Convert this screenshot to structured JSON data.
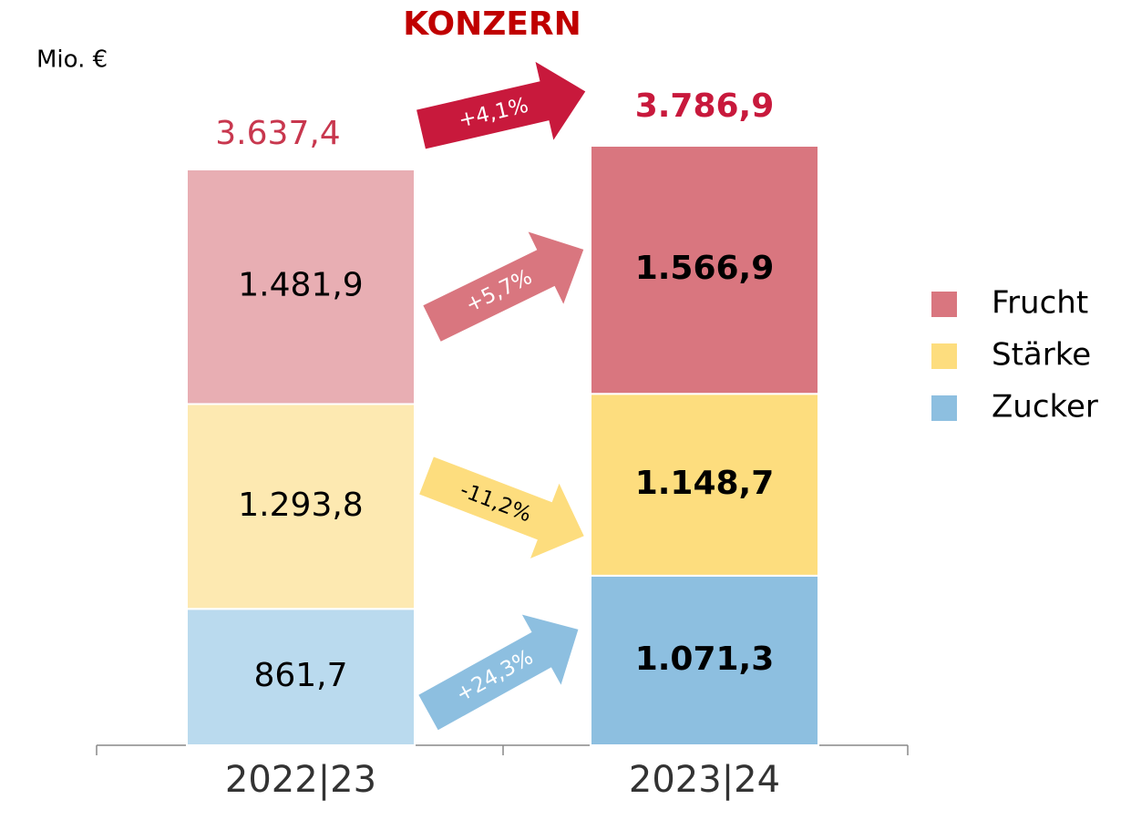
{
  "chart_data": {
    "type": "stacked-bar",
    "title": "KONZERN",
    "unit_label": "Mio. €",
    "categories": [
      "2022|23",
      "2023|24"
    ],
    "series": [
      {
        "name": "Zucker",
        "color": "#8dbfe0",
        "colors": [
          "#badaee",
          "#8dbfe0"
        ],
        "values": [
          861.7,
          1071.3
        ],
        "value_labels": [
          "861,7",
          "1.071,3"
        ],
        "change_label": "+24,3%"
      },
      {
        "name": "Stärke",
        "color": "#fddd7e",
        "colors": [
          "#fde9b1",
          "#fddd7e"
        ],
        "values": [
          1293.8,
          1148.7
        ],
        "value_labels": [
          "1.293,8",
          "1.148,7"
        ],
        "change_label": "-11,2%"
      },
      {
        "name": "Frucht",
        "color": "#d9767f",
        "colors": [
          "#e8aeb3",
          "#d9767f"
        ],
        "values": [
          1481.9,
          1566.9
        ],
        "value_labels": [
          "1.481,9",
          "1.566,9"
        ],
        "change_label": "+5,7%"
      }
    ],
    "totals": [
      3637.4,
      3786.9
    ],
    "total_labels": [
      "3.637,4",
      "3.786,9"
    ],
    "total_color": "#c8193c",
    "total_change_label": "+4,1%",
    "legend": "right"
  }
}
